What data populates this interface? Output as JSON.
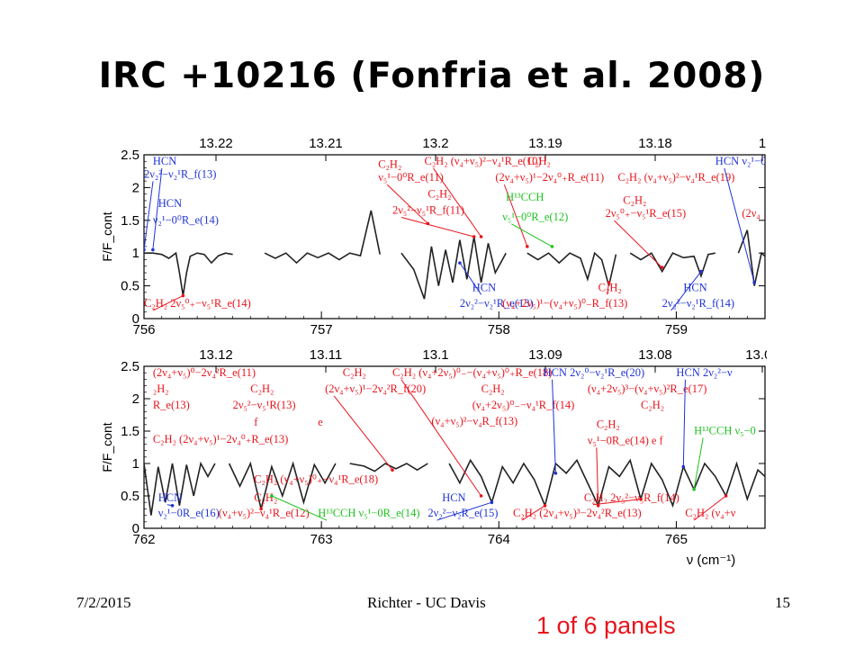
{
  "slide": {
    "title": "IRC +10216 (Fonfria et al. 2008)",
    "footer_date": "7/2/2015",
    "footer_center": "Richter - UC Davis",
    "footer_page": "15",
    "panel_note": "1 of 6 panels",
    "note_color": "#e8131a"
  },
  "colors": {
    "red": "#e8141c",
    "blue": "#1f33d6",
    "green": "#1ec21e",
    "trace": "#222222"
  },
  "chart_data": [
    {
      "type": "line",
      "ylabel": "F/F_cont",
      "xlabel": "",
      "xlim": [
        756,
        759.5
      ],
      "ylim": [
        0,
        2.5
      ],
      "x_ticks": [
        "756",
        "757",
        "758",
        "759"
      ],
      "y_ticks": [
        "0",
        "0.5",
        "1",
        "1.5",
        "2",
        "2.5"
      ],
      "top_axis_ticks": [
        "13.22",
        "13.21",
        "13.2",
        "13.19",
        "13.18",
        "1"
      ],
      "trace_segments": [
        {
          "x": [
            756.0,
            756.05,
            756.1,
            756.14,
            756.18,
            756.2,
            756.22,
            756.24,
            756.26,
            756.3,
            756.34,
            756.38,
            756.42,
            756.46,
            756.5
          ],
          "y": [
            1.0,
            1.0,
            0.98,
            0.92,
            1.0,
            0.7,
            0.35,
            0.7,
            0.95,
            1.0,
            0.98,
            0.85,
            0.96,
            1.0,
            0.98
          ]
        },
        {
          "x": [
            756.68,
            756.74,
            756.8,
            756.86,
            756.92,
            756.98,
            757.04,
            757.1,
            757.16,
            757.22,
            757.28,
            757.33
          ],
          "y": [
            1.0,
            0.92,
            1.0,
            0.85,
            1.0,
            0.93,
            1.0,
            0.9,
            1.0,
            0.96,
            1.65,
            0.98
          ]
        },
        {
          "x": [
            757.45,
            757.52,
            757.58,
            757.62,
            757.66,
            757.7,
            757.74,
            757.78,
            757.82,
            757.86,
            757.9,
            757.94,
            757.98,
            758.04
          ],
          "y": [
            1.0,
            0.75,
            0.3,
            1.1,
            0.5,
            1.05,
            0.55,
            1.2,
            0.6,
            1.25,
            0.55,
            1.15,
            0.7,
            1.0
          ]
        },
        {
          "x": [
            758.16,
            758.22,
            758.28,
            758.34,
            758.4,
            758.46,
            758.5,
            758.54,
            758.58,
            758.62,
            758.66
          ],
          "y": [
            1.0,
            0.9,
            1.0,
            0.85,
            1.0,
            0.92,
            0.6,
            1.0,
            0.9,
            0.5,
            0.98
          ]
        },
        {
          "x": [
            758.74,
            758.8,
            758.86,
            758.92,
            758.98,
            759.04,
            759.1,
            759.14,
            759.18,
            759.22
          ],
          "y": [
            1.0,
            0.9,
            1.0,
            0.72,
            1.0,
            0.93,
            0.95,
            0.65,
            0.98,
            1.0
          ]
        },
        {
          "x": [
            759.35,
            759.4,
            759.44,
            759.48,
            759.5
          ],
          "y": [
            1.0,
            1.35,
            0.5,
            1.0,
            0.95
          ]
        }
      ],
      "annotations": [
        {
          "text": "HCN",
          "color": "blue",
          "x": 756.05,
          "y": 2.35,
          "tx": 756.05,
          "ty": 1.05
        },
        {
          "text": "2ν₂²−ν₂¹R_f(13)",
          "color": "blue",
          "x": 756.0,
          "y": 2.15,
          "tx": 756.0,
          "ty": 1.05
        },
        {
          "text": "HCN",
          "color": "blue",
          "x": 756.08,
          "y": 1.7
        },
        {
          "text": "ν₂¹−0⁰R_e(14)",
          "color": "blue",
          "x": 756.05,
          "y": 1.45
        },
        {
          "text": "C₂H₂ 2ν₅⁰₊−ν₅¹R_e(14)",
          "color": "red",
          "x": 756.0,
          "y": 0.18,
          "tx": 756.22,
          "ty": 0.35
        },
        {
          "text": "C₂H₂",
          "color": "red",
          "x": 757.32,
          "y": 2.3
        },
        {
          "text": "ν₅¹−0⁰R_e(11)",
          "color": "red",
          "x": 757.32,
          "y": 2.1,
          "tx": 757.6,
          "ty": 1.45
        },
        {
          "text": "C₂H₂ (ν₄+ν₅)²−ν₄¹R_e(10)",
          "color": "red",
          "x": 757.58,
          "y": 2.35,
          "tx": 757.9,
          "ty": 1.25
        },
        {
          "text": "C₂H₂",
          "color": "red",
          "x": 757.6,
          "y": 1.85
        },
        {
          "text": "2ν₅²−ν₅¹R_f(11)",
          "color": "red",
          "x": 757.4,
          "y": 1.6,
          "tx": 757.86,
          "ty": 1.25
        },
        {
          "text": "HCN",
          "color": "blue",
          "x": 757.85,
          "y": 0.42,
          "tx": 757.78,
          "ty": 0.85
        },
        {
          "text": "2ν₂²−ν₂¹R_e(13)",
          "color": "blue",
          "x": 757.78,
          "y": 0.18
        },
        {
          "text": "C₂H₂",
          "color": "red",
          "x": 758.16,
          "y": 2.35
        },
        {
          "text": "(2ν₄+ν₅)¹−2ν₄⁰₊R_e(11)",
          "color": "red",
          "x": 757.98,
          "y": 2.1,
          "tx": 758.16,
          "ty": 1.1
        },
        {
          "text": "H¹³CCH",
          "color": "green",
          "x": 758.04,
          "y": 1.8
        },
        {
          "text": "ν₅¹−0⁰R_e(12)",
          "color": "green",
          "x": 758.02,
          "y": 1.5,
          "tx": 758.3,
          "ty": 1.1
        },
        {
          "text": "(ν₄+2ν₅)¹−(ν₄+ν₅)⁰₋R_f(13)",
          "color": "red",
          "x": 758.02,
          "y": 0.18
        },
        {
          "text": "C₂H₂",
          "color": "red",
          "x": 758.56,
          "y": 0.42,
          "tx": 758.62,
          "ty": 0.55
        },
        {
          "text": "C₂H₂ (ν₄+ν₅)²−ν₄¹R_e(19)",
          "color": "red",
          "x": 758.67,
          "y": 2.1
        },
        {
          "text": "C₂H₂",
          "color": "red",
          "x": 758.7,
          "y": 1.75
        },
        {
          "text": "2ν₅⁰₊−ν₅¹R_e(15)",
          "color": "red",
          "x": 758.6,
          "y": 1.55,
          "tx": 758.92,
          "ty": 0.78
        },
        {
          "text": "HCN",
          "color": "blue",
          "x": 759.04,
          "y": 0.42
        },
        {
          "text": "2ν₂²−ν₂¹R_f(14)",
          "color": "blue",
          "x": 758.92,
          "y": 0.18,
          "tx": 759.14,
          "ty": 0.72
        },
        {
          "text": "HCN ν₂¹−0",
          "color": "blue",
          "x": 759.22,
          "y": 2.35,
          "tx": 759.44,
          "ty": 0.55
        },
        {
          "text": "(2ν₄",
          "color": "red",
          "x": 759.37,
          "y": 1.55
        }
      ]
    },
    {
      "type": "line",
      "ylabel": "F/F_cont",
      "xlabel": "ν (cm⁻¹)",
      "xlim": [
        762,
        765.5
      ],
      "ylim": [
        0,
        2.5
      ],
      "x_ticks": [
        "762",
        "763",
        "764",
        "765"
      ],
      "y_ticks": [
        "0",
        "0.5",
        "1",
        "1.5",
        "2",
        "2.5"
      ],
      "top_axis_ticks": [
        "13.12",
        "13.11",
        "13.1",
        "13.09",
        "13.08",
        "13.07"
      ],
      "trace_segments": [
        {
          "x": [
            762.0,
            762.04,
            762.08,
            762.12,
            762.16,
            762.2,
            762.24,
            762.28,
            762.32,
            762.36,
            762.4
          ],
          "y": [
            1.0,
            0.2,
            0.95,
            0.4,
            1.0,
            0.35,
            0.98,
            0.5,
            1.0,
            0.8,
            1.0
          ]
        },
        {
          "x": [
            762.48,
            762.54,
            762.6,
            762.66,
            762.72,
            762.78,
            762.84,
            762.9,
            762.96,
            763.02,
            763.08
          ],
          "y": [
            1.0,
            0.65,
            1.0,
            0.3,
            0.95,
            0.5,
            1.0,
            0.4,
            0.98,
            0.7,
            1.0
          ]
        },
        {
          "x": [
            763.16,
            763.24,
            763.3,
            763.36,
            763.42,
            763.48,
            763.54,
            763.6
          ],
          "y": [
            1.0,
            0.96,
            0.88,
            1.0,
            0.92,
            1.0,
            0.9,
            1.0
          ]
        },
        {
          "x": [
            763.72,
            763.78,
            763.84,
            763.9,
            763.96,
            764.02,
            764.08,
            764.14,
            764.2,
            764.26,
            764.32,
            764.38,
            764.44,
            764.5,
            764.56,
            764.62,
            764.68,
            764.74,
            764.8,
            764.86,
            764.92,
            764.98,
            765.04,
            765.1,
            765.16,
            765.22,
            765.28,
            765.34,
            765.4,
            765.46,
            765.5
          ],
          "y": [
            1.0,
            0.7,
            1.05,
            0.8,
            0.4,
            0.95,
            0.7,
            1.0,
            0.75,
            0.35,
            1.0,
            0.85,
            1.05,
            0.7,
            0.35,
            0.95,
            0.8,
            1.05,
            0.45,
            1.0,
            0.75,
            0.35,
            0.95,
            0.6,
            1.0,
            0.8,
            0.5,
            1.0,
            0.45,
            0.9,
            0.8
          ]
        }
      ],
      "annotations": [
        {
          "text": "(2ν₄+ν₅)⁰−2ν₄²R_e(11)",
          "color": "red",
          "x": 762.05,
          "y": 2.35
        },
        {
          "text": "₂H₂",
          "color": "red",
          "x": 762.05,
          "y": 2.1
        },
        {
          "text": "R_e(13)",
          "color": "red",
          "x": 762.05,
          "y": 1.85
        },
        {
          "text": "C₂H₂",
          "color": "red",
          "x": 762.6,
          "y": 2.1
        },
        {
          "text": "2ν₅²−ν₅¹R(13)",
          "color": "red",
          "x": 762.5,
          "y": 1.85
        },
        {
          "text": "f",
          "color": "red",
          "x": 762.62,
          "y": 1.58
        },
        {
          "text": "e",
          "color": "red",
          "x": 762.98,
          "y": 1.58
        },
        {
          "text": "C₂H₂ (2ν₄+ν₅)¹−2ν₄⁰₊R_e(13)",
          "color": "red",
          "x": 762.05,
          "y": 1.32
        },
        {
          "text": "C₂H₂",
          "color": "red",
          "x": 763.12,
          "y": 2.35
        },
        {
          "text": "(2ν₄+ν₅)¹−2ν₄²R_f(20)",
          "color": "red",
          "x": 763.02,
          "y": 2.1,
          "tx": 763.4,
          "ty": 0.9
        },
        {
          "text": "C₂H₂ (ν₄+2ν₅)⁰₋−(ν₄+ν₅)⁰₊R_e(18)",
          "color": "red",
          "x": 763.4,
          "y": 2.35,
          "tx": 763.9,
          "ty": 0.5
        },
        {
          "text": "C₂H₂",
          "color": "red",
          "x": 763.9,
          "y": 2.1
        },
        {
          "text": "(ν₄+2ν₅)⁰₋−ν₄¹R_f(14)",
          "color": "red",
          "x": 763.85,
          "y": 1.85
        },
        {
          "text": "(ν₄+ν₅)²−ν₄R_f(13)",
          "color": "red",
          "x": 763.62,
          "y": 1.6
        },
        {
          "text": "HCN",
          "color": "blue",
          "x": 762.08,
          "y": 0.42,
          "tx": 762.16,
          "ty": 0.35
        },
        {
          "text": "ν₂¹−0R_e(16)",
          "color": "blue",
          "x": 762.08,
          "y": 0.18
        },
        {
          "text": "C₂H₂",
          "color": "red",
          "x": 762.62,
          "y": 0.42,
          "tx": 762.66,
          "ty": 0.3
        },
        {
          "text": "(ν₄+ν₅)²−ν₄¹R_e(12)",
          "color": "red",
          "x": 762.42,
          "y": 0.18
        },
        {
          "text": "C₂H₂ (ν₄+ν₅)⁰₊−ν₄¹R_e(18)",
          "color": "red",
          "x": 762.62,
          "y": 0.7
        },
        {
          "text": "H¹³CCH ν₅¹−0R_e(14)",
          "color": "green",
          "x": 762.98,
          "y": 0.18,
          "tx": 762.72,
          "ty": 0.5
        },
        {
          "text": "HCN",
          "color": "blue",
          "x": 763.68,
          "y": 0.42
        },
        {
          "text": "2ν₂²−ν₂R_e(15)",
          "color": "blue",
          "x": 763.6,
          "y": 0.18,
          "tx": 763.96,
          "ty": 0.4
        },
        {
          "text": "C₂H₂ (2ν₄+ν₅)³−2ν₄²R_e(13)",
          "color": "red",
          "x": 764.08,
          "y": 0.18,
          "tx": 764.26,
          "ty": 0.35
        },
        {
          "text": "HCN 2ν₂⁰−ν₂¹R_e(20)",
          "color": "blue",
          "x": 764.25,
          "y": 2.35,
          "tx": 764.32,
          "ty": 0.85
        },
        {
          "text": "(ν₄+2ν₅)³−(ν₄+ν₅)²R_e(17)",
          "color": "red",
          "x": 764.5,
          "y": 2.1
        },
        {
          "text": "C₂H₂",
          "color": "red",
          "x": 764.8,
          "y": 1.85
        },
        {
          "text": "C₂H₂",
          "color": "red",
          "x": 764.55,
          "y": 1.55
        },
        {
          "text": "ν₅¹−0R_e(14)",
          "color": "red",
          "x": 764.5,
          "y": 1.3,
          "tx": 764.56,
          "ty": 0.35
        },
        {
          "text": "e f",
          "color": "red",
          "x": 764.86,
          "y": 1.3
        },
        {
          "text": "C₂H₂ 2ν₅²−ν₅R_f(14)",
          "color": "red",
          "x": 764.48,
          "y": 0.42,
          "tx": 764.8,
          "ty": 0.45
        },
        {
          "text": "HCN 2ν₂²−ν",
          "color": "blue",
          "x": 765.0,
          "y": 2.35,
          "tx": 765.04,
          "ty": 0.95
        },
        {
          "text": "H¹³CCH ν₅−0",
          "color": "green",
          "x": 765.1,
          "y": 1.45,
          "tx": 765.1,
          "ty": 0.6
        },
        {
          "text": "C₂H₂ (ν₄+ν",
          "color": "red",
          "x": 765.05,
          "y": 0.18,
          "tx": 765.28,
          "ty": 0.5
        }
      ]
    }
  ]
}
